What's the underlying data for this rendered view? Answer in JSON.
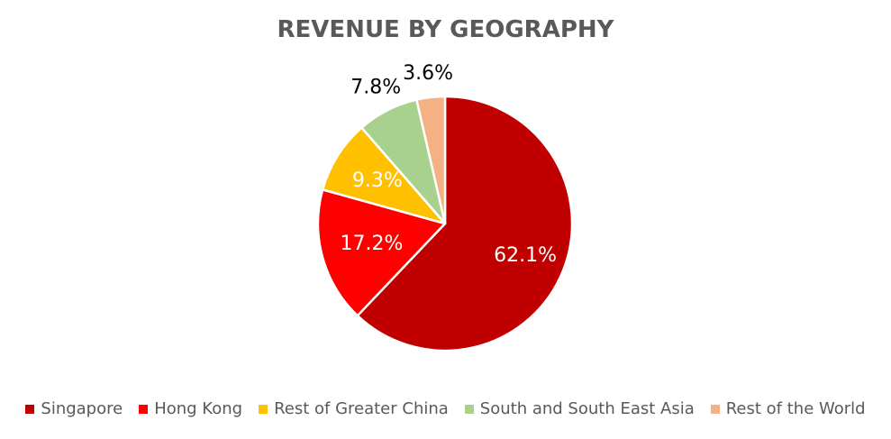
{
  "chart_data": {
    "type": "pie",
    "title": "REVENUE BY GEOGRAPHY",
    "categories": [
      "Singapore",
      "Hong Kong",
      "Rest of Greater China",
      "South and South East Asia",
      "Rest of the World"
    ],
    "values": [
      62.1,
      17.2,
      9.3,
      7.8,
      3.6
    ],
    "labels": [
      "62.1%",
      "17.2%",
      "9.3%",
      "7.8%",
      "3.6%"
    ],
    "colors": [
      "#C00000",
      "#FF0000",
      "#FFC000",
      "#A9D18E",
      "#F4B183"
    ],
    "label_colors": [
      "#ffffff",
      "#ffffff",
      "#ffffff",
      "#000000",
      "#000000"
    ],
    "legend_position": "bottom"
  }
}
